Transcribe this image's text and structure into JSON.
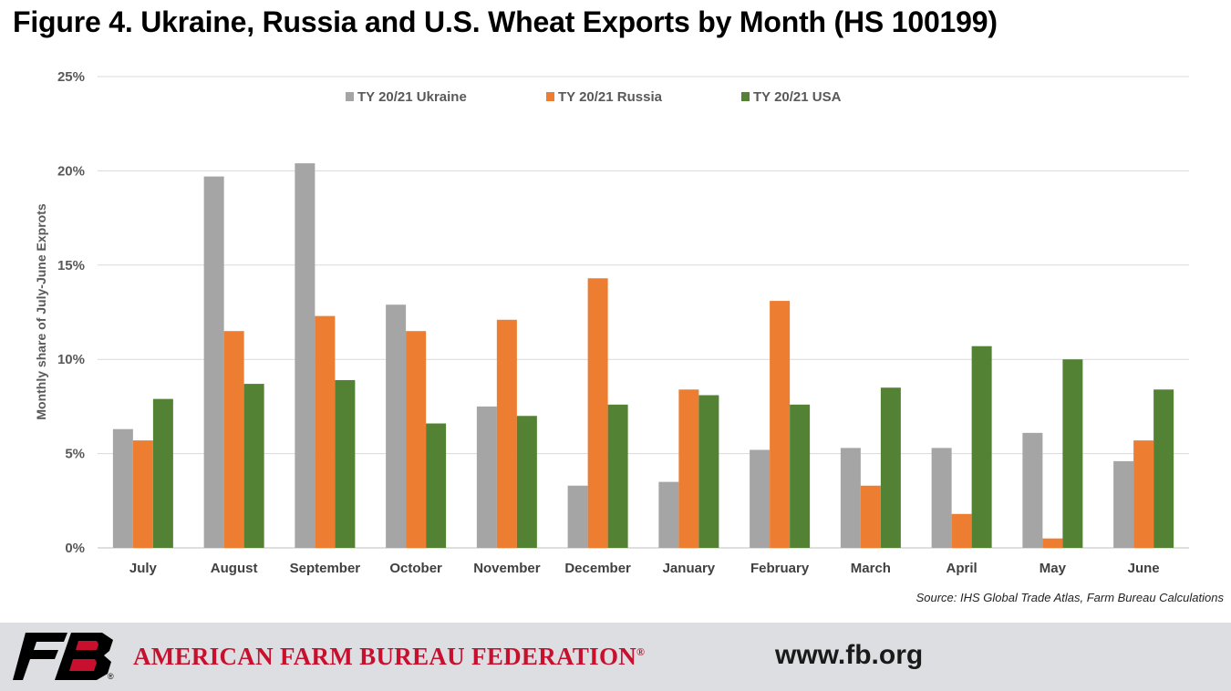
{
  "title": "Figure 4. Ukraine, Russia and U.S. Wheat Exports by Month (HS 100199)",
  "source": "Source: IHS Global Trade Atlas, Farm Bureau Calculations",
  "footer": {
    "logo_text": "FB",
    "registered_mark": "®",
    "organization": "AMERICAN FARM BUREAU FEDERATION",
    "org_mark": "®",
    "url": "www.fb.org"
  },
  "colors": {
    "ukraine": "#a5a5a5",
    "russia": "#ed7d31",
    "usa": "#548235",
    "brand_red": "#c8102e"
  },
  "chart_data": {
    "type": "bar",
    "ylabel": "Monthly share of July-June Exprots",
    "xlabel": "",
    "ylim": [
      0,
      25
    ],
    "yticks": [
      "0%",
      "5%",
      "10%",
      "15%",
      "20%",
      "25%"
    ],
    "grid": true,
    "legend_position": "top",
    "categories": [
      "July",
      "August",
      "September",
      "October",
      "November",
      "December",
      "January",
      "February",
      "March",
      "April",
      "May",
      "June"
    ],
    "series": [
      {
        "name": "TY 20/21 Ukraine",
        "color": "#a5a5a5",
        "values": [
          6.3,
          19.7,
          20.4,
          12.9,
          7.5,
          3.3,
          3.5,
          5.2,
          5.3,
          5.3,
          6.1,
          4.6
        ]
      },
      {
        "name": "TY 20/21 Russia",
        "color": "#ed7d31",
        "values": [
          5.7,
          11.5,
          12.3,
          11.5,
          12.1,
          14.3,
          8.4,
          13.1,
          3.3,
          1.8,
          0.5,
          5.7
        ]
      },
      {
        "name": "TY 20/21 USA",
        "color": "#548235",
        "values": [
          7.9,
          8.7,
          8.9,
          6.6,
          7.0,
          7.6,
          8.1,
          7.6,
          8.5,
          10.7,
          10.0,
          8.4
        ]
      }
    ]
  }
}
